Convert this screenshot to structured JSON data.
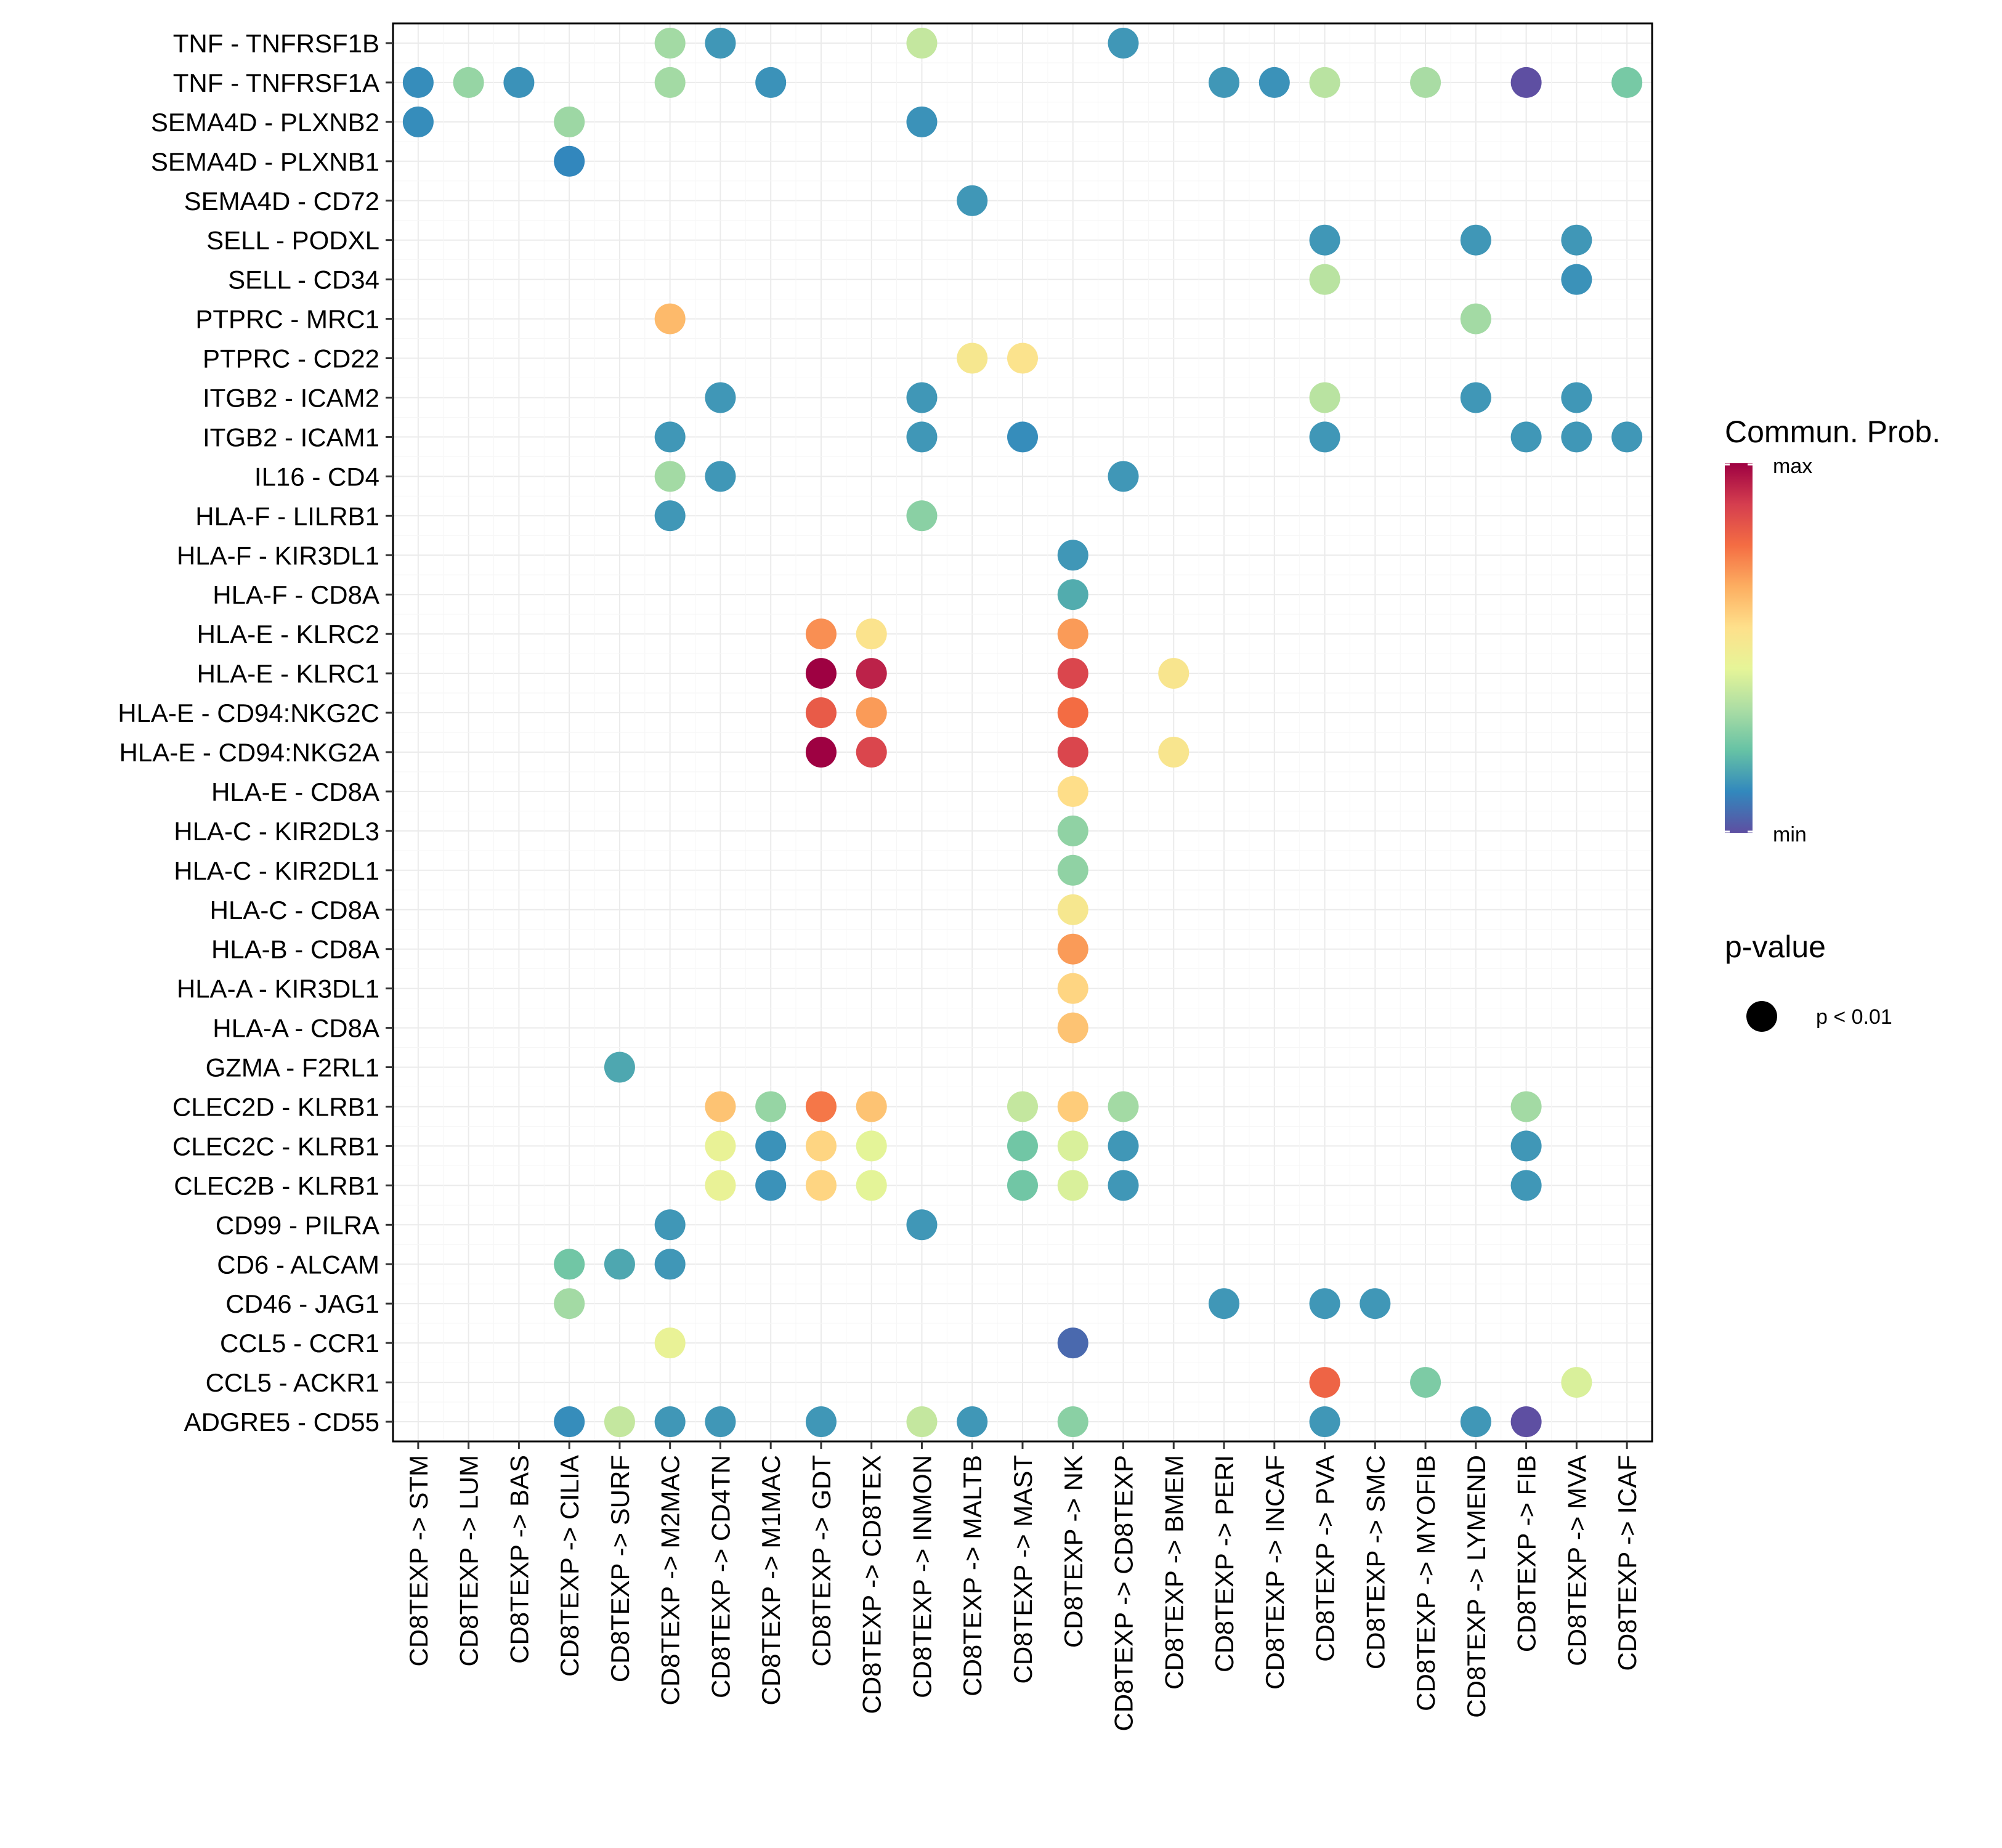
{
  "chart_data": {
    "type": "bubble-heatmap",
    "title": "",
    "xlabel": "",
    "ylabel": "",
    "x_categories": [
      "CD8TEXP -> STM",
      "CD8TEXP -> LUM",
      "CD8TEXP -> BAS",
      "CD8TEXP -> CILIA",
      "CD8TEXP -> SURF",
      "CD8TEXP -> M2MAC",
      "CD8TEXP -> CD4TN",
      "CD8TEXP -> M1MAC",
      "CD8TEXP -> GDT",
      "CD8TEXP -> CD8TEX",
      "CD8TEXP -> INMON",
      "CD8TEXP -> MALTB",
      "CD8TEXP -> MAST",
      "CD8TEXP -> NK",
      "CD8TEXP -> CD8TEXP",
      "CD8TEXP -> BMEM",
      "CD8TEXP -> PERI",
      "CD8TEXP -> INCAF",
      "CD8TEXP -> PVA",
      "CD8TEXP -> SMC",
      "CD8TEXP -> MYOFIB",
      "CD8TEXP -> LYMEND",
      "CD8TEXP -> FIB",
      "CD8TEXP -> MVA",
      "CD8TEXP -> ICAF"
    ],
    "y_categories": [
      "TNF - TNFRSF1B",
      "TNF - TNFRSF1A",
      "SEMA4D - PLXNB2",
      "SEMA4D - PLXNB1",
      "SEMA4D - CD72",
      "SELL - PODXL",
      "SELL - CD34",
      "PTPRC - MRC1",
      "PTPRC - CD22",
      "ITGB2 - ICAM2",
      "ITGB2 - ICAM1",
      "IL16 - CD4",
      "HLA-F - LILRB1",
      "HLA-F - KIR3DL1",
      "HLA-F - CD8A",
      "HLA-E - KLRC2",
      "HLA-E - KLRC1",
      "HLA-E - CD94:NKG2C",
      "HLA-E - CD94:NKG2A",
      "HLA-E - CD8A",
      "HLA-C - KIR2DL3",
      "HLA-C - KIR2DL1",
      "HLA-C - CD8A",
      "HLA-B - CD8A",
      "HLA-A - KIR3DL1",
      "HLA-A - CD8A",
      "GZMA - F2RL1",
      "CLEC2D - KLRB1",
      "CLEC2C - KLRB1",
      "CLEC2B - KLRB1",
      "CD99 - PILRA",
      "CD6 - ALCAM",
      "CD46 - JAG1",
      "CCL5 - CCR1",
      "CCL5 - ACKR1",
      "ADGRE5 - CD55"
    ],
    "value_scale": "relative communication probability, 0 = min, 1 = max",
    "points": [
      {
        "y": "TNF - TNFRSF1B",
        "x": "CD8TEXP -> M2MAC",
        "value": 0.32
      },
      {
        "y": "TNF - TNFRSF1B",
        "x": "CD8TEXP -> CD4TN",
        "value": 0.14
      },
      {
        "y": "TNF - TNFRSF1B",
        "x": "CD8TEXP -> INMON",
        "value": 0.38
      },
      {
        "y": "TNF - TNFRSF1B",
        "x": "CD8TEXP -> CD8TEXP",
        "value": 0.14
      },
      {
        "y": "TNF - TNFRSF1A",
        "x": "CD8TEXP -> STM",
        "value": 0.12
      },
      {
        "y": "TNF - TNFRSF1A",
        "x": "CD8TEXP -> LUM",
        "value": 0.3
      },
      {
        "y": "TNF - TNFRSF1A",
        "x": "CD8TEXP -> BAS",
        "value": 0.13
      },
      {
        "y": "TNF - TNFRSF1A",
        "x": "CD8TEXP -> M2MAC",
        "value": 0.32
      },
      {
        "y": "TNF - TNFRSF1A",
        "x": "CD8TEXP -> M1MAC",
        "value": 0.13
      },
      {
        "y": "TNF - TNFRSF1A",
        "x": "CD8TEXP -> PERI",
        "value": 0.14
      },
      {
        "y": "TNF - TNFRSF1A",
        "x": "CD8TEXP -> INCAF",
        "value": 0.13
      },
      {
        "y": "TNF - TNFRSF1A",
        "x": "CD8TEXP -> PVA",
        "value": 0.36
      },
      {
        "y": "TNF - TNFRSF1A",
        "x": "CD8TEXP -> MYOFIB",
        "value": 0.33
      },
      {
        "y": "TNF - TNFRSF1A",
        "x": "CD8TEXP -> FIB",
        "value": 0.0
      },
      {
        "y": "TNF - TNFRSF1A",
        "x": "CD8TEXP -> ICAF",
        "value": 0.25
      },
      {
        "y": "SEMA4D - PLXNB2",
        "x": "CD8TEXP -> STM",
        "value": 0.12
      },
      {
        "y": "SEMA4D - PLXNB2",
        "x": "CD8TEXP -> CILIA",
        "value": 0.31
      },
      {
        "y": "SEMA4D - PLXNB2",
        "x": "CD8TEXP -> INMON",
        "value": 0.13
      },
      {
        "y": "SEMA4D - PLXNB1",
        "x": "CD8TEXP -> CILIA",
        "value": 0.11
      },
      {
        "y": "SEMA4D - CD72",
        "x": "CD8TEXP -> MALTB",
        "value": 0.14
      },
      {
        "y": "SELL - PODXL",
        "x": "CD8TEXP -> PVA",
        "value": 0.14
      },
      {
        "y": "SELL - PODXL",
        "x": "CD8TEXP -> LYMEND",
        "value": 0.14
      },
      {
        "y": "SELL - PODXL",
        "x": "CD8TEXP -> MVA",
        "value": 0.14
      },
      {
        "y": "SELL - CD34",
        "x": "CD8TEXP -> PVA",
        "value": 0.36
      },
      {
        "y": "SELL - CD34",
        "x": "CD8TEXP -> MVA",
        "value": 0.13
      },
      {
        "y": "PTPRC - MRC1",
        "x": "CD8TEXP -> M2MAC",
        "value": 0.64
      },
      {
        "y": "PTPRC - MRC1",
        "x": "CD8TEXP -> LYMEND",
        "value": 0.32
      },
      {
        "y": "PTPRC - CD22",
        "x": "CD8TEXP -> MALTB",
        "value": 0.52
      },
      {
        "y": "PTPRC - CD22",
        "x": "CD8TEXP -> MAST",
        "value": 0.54
      },
      {
        "y": "ITGB2 - ICAM2",
        "x": "CD8TEXP -> CD4TN",
        "value": 0.14
      },
      {
        "y": "ITGB2 - ICAM2",
        "x": "CD8TEXP -> INMON",
        "value": 0.14
      },
      {
        "y": "ITGB2 - ICAM2",
        "x": "CD8TEXP -> PVA",
        "value": 0.36
      },
      {
        "y": "ITGB2 - ICAM2",
        "x": "CD8TEXP -> LYMEND",
        "value": 0.14
      },
      {
        "y": "ITGB2 - ICAM2",
        "x": "CD8TEXP -> MVA",
        "value": 0.14
      },
      {
        "y": "ITGB2 - ICAM1",
        "x": "CD8TEXP -> M2MAC",
        "value": 0.14
      },
      {
        "y": "ITGB2 - ICAM1",
        "x": "CD8TEXP -> INMON",
        "value": 0.14
      },
      {
        "y": "ITGB2 - ICAM1",
        "x": "CD8TEXP -> MAST",
        "value": 0.12
      },
      {
        "y": "ITGB2 - ICAM1",
        "x": "CD8TEXP -> PVA",
        "value": 0.14
      },
      {
        "y": "ITGB2 - ICAM1",
        "x": "CD8TEXP -> FIB",
        "value": 0.14
      },
      {
        "y": "ITGB2 - ICAM1",
        "x": "CD8TEXP -> MVA",
        "value": 0.14
      },
      {
        "y": "ITGB2 - ICAM1",
        "x": "CD8TEXP -> ICAF",
        "value": 0.14
      },
      {
        "y": "IL16 - CD4",
        "x": "CD8TEXP -> M2MAC",
        "value": 0.32
      },
      {
        "y": "IL16 - CD4",
        "x": "CD8TEXP -> CD4TN",
        "value": 0.14
      },
      {
        "y": "IL16 - CD4",
        "x": "CD8TEXP -> CD8TEXP",
        "value": 0.14
      },
      {
        "y": "HLA-F - LILRB1",
        "x": "CD8TEXP -> M2MAC",
        "value": 0.14
      },
      {
        "y": "HLA-F - LILRB1",
        "x": "CD8TEXP -> INMON",
        "value": 0.28
      },
      {
        "y": "HLA-F - KIR3DL1",
        "x": "CD8TEXP -> NK",
        "value": 0.14
      },
      {
        "y": "HLA-F - CD8A",
        "x": "CD8TEXP -> NK",
        "value": 0.18
      },
      {
        "y": "HLA-E - KLRC2",
        "x": "CD8TEXP -> GDT",
        "value": 0.72
      },
      {
        "y": "HLA-E - KLRC2",
        "x": "CD8TEXP -> CD8TEX",
        "value": 0.54
      },
      {
        "y": "HLA-E - KLRC2",
        "x": "CD8TEXP -> NK",
        "value": 0.7
      },
      {
        "y": "HLA-E - KLRC1",
        "x": "CD8TEXP -> GDT",
        "value": 1.0
      },
      {
        "y": "HLA-E - KLRC1",
        "x": "CD8TEXP -> CD8TEX",
        "value": 0.94
      },
      {
        "y": "HLA-E - KLRC1",
        "x": "CD8TEXP -> NK",
        "value": 0.87
      },
      {
        "y": "HLA-E - KLRC1",
        "x": "CD8TEXP -> BMEM",
        "value": 0.53
      },
      {
        "y": "HLA-E - CD94:NKG2C",
        "x": "CD8TEXP -> GDT",
        "value": 0.82
      },
      {
        "y": "HLA-E - CD94:NKG2C",
        "x": "CD8TEXP -> CD8TEX",
        "value": 0.7
      },
      {
        "y": "HLA-E - CD94:NKG2C",
        "x": "CD8TEXP -> NK",
        "value": 0.78
      },
      {
        "y": "HLA-E - CD94:NKG2A",
        "x": "CD8TEXP -> GDT",
        "value": 1.0
      },
      {
        "y": "HLA-E - CD94:NKG2A",
        "x": "CD8TEXP -> CD8TEX",
        "value": 0.87
      },
      {
        "y": "HLA-E - CD94:NKG2A",
        "x": "CD8TEXP -> NK",
        "value": 0.87
      },
      {
        "y": "HLA-E - CD94:NKG2A",
        "x": "CD8TEXP -> BMEM",
        "value": 0.53
      },
      {
        "y": "HLA-E - CD8A",
        "x": "CD8TEXP -> NK",
        "value": 0.56
      },
      {
        "y": "HLA-C - KIR2DL3",
        "x": "CD8TEXP -> NK",
        "value": 0.29
      },
      {
        "y": "HLA-C - KIR2DL1",
        "x": "CD8TEXP -> NK",
        "value": 0.29
      },
      {
        "y": "HLA-C - CD8A",
        "x": "CD8TEXP -> NK",
        "value": 0.52
      },
      {
        "y": "HLA-B - CD8A",
        "x": "CD8TEXP -> NK",
        "value": 0.7
      },
      {
        "y": "HLA-A - KIR3DL1",
        "x": "CD8TEXP -> NK",
        "value": 0.58
      },
      {
        "y": "HLA-A - CD8A",
        "x": "CD8TEXP -> NK",
        "value": 0.62
      },
      {
        "y": "GZMA - F2RL1",
        "x": "CD8TEXP -> SURF",
        "value": 0.17
      },
      {
        "y": "CLEC2D - KLRB1",
        "x": "CD8TEXP -> CD4TN",
        "value": 0.62
      },
      {
        "y": "CLEC2D - KLRB1",
        "x": "CD8TEXP -> M1MAC",
        "value": 0.3
      },
      {
        "y": "CLEC2D - KLRB1",
        "x": "CD8TEXP -> GDT",
        "value": 0.76
      },
      {
        "y": "CLEC2D - KLRB1",
        "x": "CD8TEXP -> CD8TEX",
        "value": 0.62
      },
      {
        "y": "CLEC2D - KLRB1",
        "x": "CD8TEXP -> MAST",
        "value": 0.38
      },
      {
        "y": "CLEC2D - KLRB1",
        "x": "CD8TEXP -> NK",
        "value": 0.6
      },
      {
        "y": "CLEC2D - KLRB1",
        "x": "CD8TEXP -> CD8TEXP",
        "value": 0.32
      },
      {
        "y": "CLEC2D - KLRB1",
        "x": "CD8TEXP -> FIB",
        "value": 0.32
      },
      {
        "y": "CLEC2C - KLRB1",
        "x": "CD8TEXP -> CD4TN",
        "value": 0.46
      },
      {
        "y": "CLEC2C - KLRB1",
        "x": "CD8TEXP -> M1MAC",
        "value": 0.13
      },
      {
        "y": "CLEC2C - KLRB1",
        "x": "CD8TEXP -> GDT",
        "value": 0.58
      },
      {
        "y": "CLEC2C - KLRB1",
        "x": "CD8TEXP -> CD8TEX",
        "value": 0.44
      },
      {
        "y": "CLEC2C - KLRB1",
        "x": "CD8TEXP -> MAST",
        "value": 0.24
      },
      {
        "y": "CLEC2C - KLRB1",
        "x": "CD8TEXP -> NK",
        "value": 0.42
      },
      {
        "y": "CLEC2C - KLRB1",
        "x": "CD8TEXP -> CD8TEXP",
        "value": 0.14
      },
      {
        "y": "CLEC2C - KLRB1",
        "x": "CD8TEXP -> FIB",
        "value": 0.14
      },
      {
        "y": "CLEC2B - KLRB1",
        "x": "CD8TEXP -> CD4TN",
        "value": 0.46
      },
      {
        "y": "CLEC2B - KLRB1",
        "x": "CD8TEXP -> M1MAC",
        "value": 0.13
      },
      {
        "y": "CLEC2B - KLRB1",
        "x": "CD8TEXP -> GDT",
        "value": 0.58
      },
      {
        "y": "CLEC2B - KLRB1",
        "x": "CD8TEXP -> CD8TEX",
        "value": 0.44
      },
      {
        "y": "CLEC2B - KLRB1",
        "x": "CD8TEXP -> MAST",
        "value": 0.24
      },
      {
        "y": "CLEC2B - KLRB1",
        "x": "CD8TEXP -> NK",
        "value": 0.42
      },
      {
        "y": "CLEC2B - KLRB1",
        "x": "CD8TEXP -> CD8TEXP",
        "value": 0.14
      },
      {
        "y": "CLEC2B - KLRB1",
        "x": "CD8TEXP -> FIB",
        "value": 0.14
      },
      {
        "y": "CD99 - PILRA",
        "x": "CD8TEXP -> M2MAC",
        "value": 0.14
      },
      {
        "y": "CD99 - PILRA",
        "x": "CD8TEXP -> INMON",
        "value": 0.14
      },
      {
        "y": "CD6 - ALCAM",
        "x": "CD8TEXP -> CILIA",
        "value": 0.24
      },
      {
        "y": "CD6 - ALCAM",
        "x": "CD8TEXP -> SURF",
        "value": 0.17
      },
      {
        "y": "CD6 - ALCAM",
        "x": "CD8TEXP -> M2MAC",
        "value": 0.14
      },
      {
        "y": "CD46 - JAG1",
        "x": "CD8TEXP -> CILIA",
        "value": 0.32
      },
      {
        "y": "CD46 - JAG1",
        "x": "CD8TEXP -> PERI",
        "value": 0.14
      },
      {
        "y": "CD46 - JAG1",
        "x": "CD8TEXP -> PVA",
        "value": 0.14
      },
      {
        "y": "CD46 - JAG1",
        "x": "CD8TEXP -> SMC",
        "value": 0.14
      },
      {
        "y": "CCL5 - CCR1",
        "x": "CD8TEXP -> M2MAC",
        "value": 0.46
      },
      {
        "y": "CCL5 - CCR1",
        "x": "CD8TEXP -> NK",
        "value": 0.05
      },
      {
        "y": "CCL5 - ACKR1",
        "x": "CD8TEXP -> PVA",
        "value": 0.8
      },
      {
        "y": "CCL5 - ACKR1",
        "x": "CD8TEXP -> MYOFIB",
        "value": 0.26
      },
      {
        "y": "CCL5 - ACKR1",
        "x": "CD8TEXP -> MVA",
        "value": 0.42
      },
      {
        "y": "ADGRE5 - CD55",
        "x": "CD8TEXP -> CILIA",
        "value": 0.12
      },
      {
        "y": "ADGRE5 - CD55",
        "x": "CD8TEXP -> SURF",
        "value": 0.38
      },
      {
        "y": "ADGRE5 - CD55",
        "x": "CD8TEXP -> M2MAC",
        "value": 0.14
      },
      {
        "y": "ADGRE5 - CD55",
        "x": "CD8TEXP -> CD4TN",
        "value": 0.14
      },
      {
        "y": "ADGRE5 - CD55",
        "x": "CD8TEXP -> GDT",
        "value": 0.14
      },
      {
        "y": "ADGRE5 - CD55",
        "x": "CD8TEXP -> INMON",
        "value": 0.38
      },
      {
        "y": "ADGRE5 - CD55",
        "x": "CD8TEXP -> MALTB",
        "value": 0.14
      },
      {
        "y": "ADGRE5 - CD55",
        "x": "CD8TEXP -> NK",
        "value": 0.28
      },
      {
        "y": "ADGRE5 - CD55",
        "x": "CD8TEXP -> PVA",
        "value": 0.14
      },
      {
        "y": "ADGRE5 - CD55",
        "x": "CD8TEXP -> LYMEND",
        "value": 0.14
      },
      {
        "y": "ADGRE5 - CD55",
        "x": "CD8TEXP -> FIB",
        "value": 0.0
      }
    ],
    "legend": {
      "color_title": "Commun. Prob.",
      "color_max_label": "max",
      "color_min_label": "min",
      "size_title": "p-value",
      "size_label": "p < 0.01",
      "placement": "right"
    },
    "colormap": [
      "#5E4FA2",
      "#3288BD",
      "#66C2A5",
      "#ABDDA4",
      "#E6F598",
      "#FEE08B",
      "#FDAE61",
      "#F46D43",
      "#D53E4F",
      "#9E0142"
    ],
    "grid": true
  }
}
